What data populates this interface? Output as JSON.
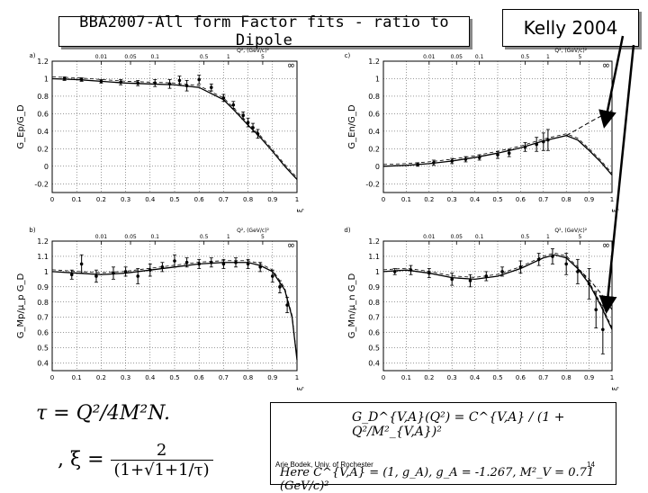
{
  "header": {
    "title": "BBA2007-All form Factor fits - ratio to Dipole",
    "reference": "Kelly 2004"
  },
  "formulas": {
    "tau": "τ = Q²/4M²N.",
    "xi_lhs": ", ξ =",
    "xi_num": "2",
    "xi_den": "(1+√1+1/τ)",
    "dipole": "G_D^{V,A}(Q²) = C^{V,A} / (1 + Q²/M²_{V,A})²",
    "constants": "Here C^{V,A} = (1, g_A), g_A = -1.267, M²_V = 0.71 (GeV/c)²"
  },
  "footer": {
    "author": "Arie Bodek, Univ. of Rochester",
    "page": "14"
  },
  "colors": {
    "arrow": "#000000",
    "data": "#000000",
    "curve": "#000000"
  },
  "chart_data": [
    {
      "type": "scatter",
      "panel_label": "a)",
      "ylabel": "G_Ep/G_D",
      "xlabel": "ξ",
      "top_axis_label": "Q², (GeV/c)²",
      "top_ticks": [
        "0.01",
        "0.05",
        "0.1",
        "0.5",
        "1",
        "5"
      ],
      "xlim": [
        0,
        1
      ],
      "ylim": [
        -0.3,
        1.2
      ],
      "y_ticks": [
        "-0.2",
        "0",
        "0.2",
        "0.4",
        "0.6",
        "0.8",
        "1",
        "1.2"
      ],
      "x_ticks": [
        "0",
        "0.1",
        "0.2",
        "0.3",
        "0.4",
        "0.5",
        "0.6",
        "0.7",
        "0.8",
        "0.9",
        "1"
      ],
      "side_mark": "∞",
      "fit": {
        "x": [
          0,
          0.1,
          0.2,
          0.3,
          0.4,
          0.5,
          0.6,
          0.7,
          0.75,
          0.8,
          0.85,
          0.9,
          0.95,
          1.0
        ],
        "y": [
          1.0,
          0.99,
          0.97,
          0.95,
          0.94,
          0.93,
          0.9,
          0.76,
          0.62,
          0.47,
          0.33,
          0.17,
          0.0,
          -0.15
        ]
      },
      "points": [
        {
          "x": 0.05,
          "y": 1.0,
          "e": 0.02
        },
        {
          "x": 0.12,
          "y": 0.99,
          "e": 0.02
        },
        {
          "x": 0.2,
          "y": 0.97,
          "e": 0.02
        },
        {
          "x": 0.28,
          "y": 0.96,
          "e": 0.03
        },
        {
          "x": 0.35,
          "y": 0.95,
          "e": 0.03
        },
        {
          "x": 0.42,
          "y": 0.95,
          "e": 0.04
        },
        {
          "x": 0.48,
          "y": 0.94,
          "e": 0.05
        },
        {
          "x": 0.52,
          "y": 0.98,
          "e": 0.05
        },
        {
          "x": 0.55,
          "y": 0.92,
          "e": 0.06
        },
        {
          "x": 0.6,
          "y": 0.99,
          "e": 0.05
        },
        {
          "x": 0.65,
          "y": 0.9,
          "e": 0.04
        },
        {
          "x": 0.7,
          "y": 0.78,
          "e": 0.04
        },
        {
          "x": 0.74,
          "y": 0.7,
          "e": 0.04
        },
        {
          "x": 0.78,
          "y": 0.58,
          "e": 0.04
        },
        {
          "x": 0.8,
          "y": 0.5,
          "e": 0.05
        },
        {
          "x": 0.82,
          "y": 0.44,
          "e": 0.05
        },
        {
          "x": 0.84,
          "y": 0.37,
          "e": 0.05
        }
      ]
    },
    {
      "type": "scatter",
      "panel_label": "c)",
      "ylabel": "G_En/G_D",
      "xlabel": "ξ",
      "top_axis_label": "Q², (GeV/c)²",
      "top_ticks": [
        "0.01",
        "0.05",
        "0.1",
        "0.5",
        "1",
        "5"
      ],
      "xlim": [
        0,
        1
      ],
      "ylim": [
        -0.3,
        1.2
      ],
      "y_ticks": [
        "-0.2",
        "0",
        "0.2",
        "0.4",
        "0.6",
        "0.8",
        "1",
        "1.2"
      ],
      "x_ticks": [
        "0",
        "0.1",
        "0.2",
        "0.3",
        "0.4",
        "0.5",
        "0.6",
        "0.7",
        "0.8",
        "0.9",
        "1"
      ],
      "side_mark": "∞",
      "fit": {
        "x": [
          0,
          0.1,
          0.2,
          0.3,
          0.4,
          0.5,
          0.6,
          0.7,
          0.8,
          0.85,
          0.9,
          0.95,
          1.0
        ],
        "y": [
          0.0,
          0.01,
          0.03,
          0.06,
          0.1,
          0.15,
          0.21,
          0.29,
          0.35,
          0.3,
          0.18,
          0.05,
          -0.1
        ]
      },
      "fit_dashed": {
        "x": [
          0.8,
          0.9,
          1.0
        ],
        "y": [
          0.35,
          0.5,
          0.64
        ]
      },
      "points": [
        {
          "x": 0.15,
          "y": 0.02,
          "e": 0.02
        },
        {
          "x": 0.22,
          "y": 0.04,
          "e": 0.03
        },
        {
          "x": 0.3,
          "y": 0.06,
          "e": 0.03
        },
        {
          "x": 0.36,
          "y": 0.08,
          "e": 0.03
        },
        {
          "x": 0.42,
          "y": 0.1,
          "e": 0.03
        },
        {
          "x": 0.5,
          "y": 0.13,
          "e": 0.04
        },
        {
          "x": 0.55,
          "y": 0.15,
          "e": 0.04
        },
        {
          "x": 0.62,
          "y": 0.22,
          "e": 0.05
        },
        {
          "x": 0.67,
          "y": 0.25,
          "e": 0.08
        },
        {
          "x": 0.7,
          "y": 0.28,
          "e": 0.1
        },
        {
          "x": 0.72,
          "y": 0.3,
          "e": 0.12
        }
      ]
    },
    {
      "type": "scatter",
      "panel_label": "b)",
      "ylabel": "G_Mp/μ_p G_D",
      "xlabel": "ξ",
      "top_axis_label": "Q², (GeV/c)²",
      "top_ticks": [
        "0.01",
        "0.05",
        "0.1",
        "0.5",
        "1",
        "5"
      ],
      "xlim": [
        0,
        1
      ],
      "ylim": [
        0.35,
        1.2
      ],
      "y_ticks": [
        "0.4",
        "0.5",
        "0.6",
        "0.7",
        "0.8",
        "0.9",
        "1",
        "1.1",
        "1.2"
      ],
      "x_ticks": [
        "0",
        "0.1",
        "0.2",
        "0.3",
        "0.4",
        "0.5",
        "0.6",
        "0.7",
        "0.8",
        "0.9",
        "1"
      ],
      "side_mark": "∞",
      "fit": {
        "x": [
          0,
          0.1,
          0.2,
          0.3,
          0.4,
          0.5,
          0.6,
          0.7,
          0.8,
          0.85,
          0.9,
          0.95,
          0.98,
          1.0
        ],
        "y": [
          1.0,
          0.99,
          0.98,
          0.99,
          1.01,
          1.03,
          1.05,
          1.06,
          1.06,
          1.04,
          1.0,
          0.88,
          0.7,
          0.42
        ]
      },
      "points": [
        {
          "x": 0.08,
          "y": 0.98,
          "e": 0.03
        },
        {
          "x": 0.12,
          "y": 1.05,
          "e": 0.06
        },
        {
          "x": 0.18,
          "y": 0.97,
          "e": 0.04
        },
        {
          "x": 0.25,
          "y": 0.99,
          "e": 0.04
        },
        {
          "x": 0.3,
          "y": 1.0,
          "e": 0.03
        },
        {
          "x": 0.35,
          "y": 0.97,
          "e": 0.05
        },
        {
          "x": 0.4,
          "y": 1.01,
          "e": 0.04
        },
        {
          "x": 0.45,
          "y": 1.03,
          "e": 0.03
        },
        {
          "x": 0.5,
          "y": 1.07,
          "e": 0.04
        },
        {
          "x": 0.55,
          "y": 1.06,
          "e": 0.03
        },
        {
          "x": 0.6,
          "y": 1.05,
          "e": 0.03
        },
        {
          "x": 0.65,
          "y": 1.06,
          "e": 0.03
        },
        {
          "x": 0.7,
          "y": 1.05,
          "e": 0.03
        },
        {
          "x": 0.75,
          "y": 1.06,
          "e": 0.03
        },
        {
          "x": 0.8,
          "y": 1.05,
          "e": 0.03
        },
        {
          "x": 0.85,
          "y": 1.03,
          "e": 0.03
        },
        {
          "x": 0.9,
          "y": 0.97,
          "e": 0.04
        },
        {
          "x": 0.93,
          "y": 0.9,
          "e": 0.04
        },
        {
          "x": 0.96,
          "y": 0.78,
          "e": 0.05
        }
      ]
    },
    {
      "type": "scatter",
      "panel_label": "d)",
      "ylabel": "G_Mn/μ_n G_D",
      "xlabel": "ξ",
      "top_axis_label": "Q², (GeV/c)²",
      "top_ticks": [
        "0.01",
        "0.05",
        "0.1",
        "0.5",
        "1",
        "5"
      ],
      "xlim": [
        0,
        1
      ],
      "ylim": [
        0.35,
        1.2
      ],
      "y_ticks": [
        "0.4",
        "0.5",
        "0.6",
        "0.7",
        "0.8",
        "0.9",
        "1",
        "1.1",
        "1.2"
      ],
      "x_ticks": [
        "0",
        "0.1",
        "0.2",
        "0.3",
        "0.4",
        "0.5",
        "0.6",
        "0.7",
        "0.8",
        "0.9",
        "1"
      ],
      "side_mark": "∞",
      "fit": {
        "x": [
          0,
          0.1,
          0.2,
          0.3,
          0.4,
          0.5,
          0.6,
          0.7,
          0.75,
          0.8,
          0.85,
          0.9,
          0.95,
          1.0
        ],
        "y": [
          1.0,
          1.01,
          0.99,
          0.96,
          0.95,
          0.97,
          1.02,
          1.09,
          1.11,
          1.09,
          1.02,
          0.92,
          0.78,
          0.62
        ]
      },
      "fit_dashed": {
        "x": [
          0.85,
          0.9,
          0.95,
          1.0
        ],
        "y": [
          1.02,
          0.95,
          0.86,
          0.75
        ]
      },
      "points": [
        {
          "x": 0.05,
          "y": 1.0,
          "e": 0.02
        },
        {
          "x": 0.12,
          "y": 1.01,
          "e": 0.03
        },
        {
          "x": 0.2,
          "y": 0.99,
          "e": 0.03
        },
        {
          "x": 0.3,
          "y": 0.95,
          "e": 0.04
        },
        {
          "x": 0.38,
          "y": 0.94,
          "e": 0.04
        },
        {
          "x": 0.45,
          "y": 0.97,
          "e": 0.03
        },
        {
          "x": 0.52,
          "y": 1.0,
          "e": 0.03
        },
        {
          "x": 0.6,
          "y": 1.03,
          "e": 0.04
        },
        {
          "x": 0.68,
          "y": 1.08,
          "e": 0.04
        },
        {
          "x": 0.74,
          "y": 1.1,
          "e": 0.05
        },
        {
          "x": 0.8,
          "y": 1.05,
          "e": 0.07
        },
        {
          "x": 0.85,
          "y": 1.0,
          "e": 0.08
        },
        {
          "x": 0.9,
          "y": 0.92,
          "e": 0.1
        },
        {
          "x": 0.93,
          "y": 0.75,
          "e": 0.12
        },
        {
          "x": 0.96,
          "y": 0.62,
          "e": 0.16
        }
      ]
    }
  ]
}
